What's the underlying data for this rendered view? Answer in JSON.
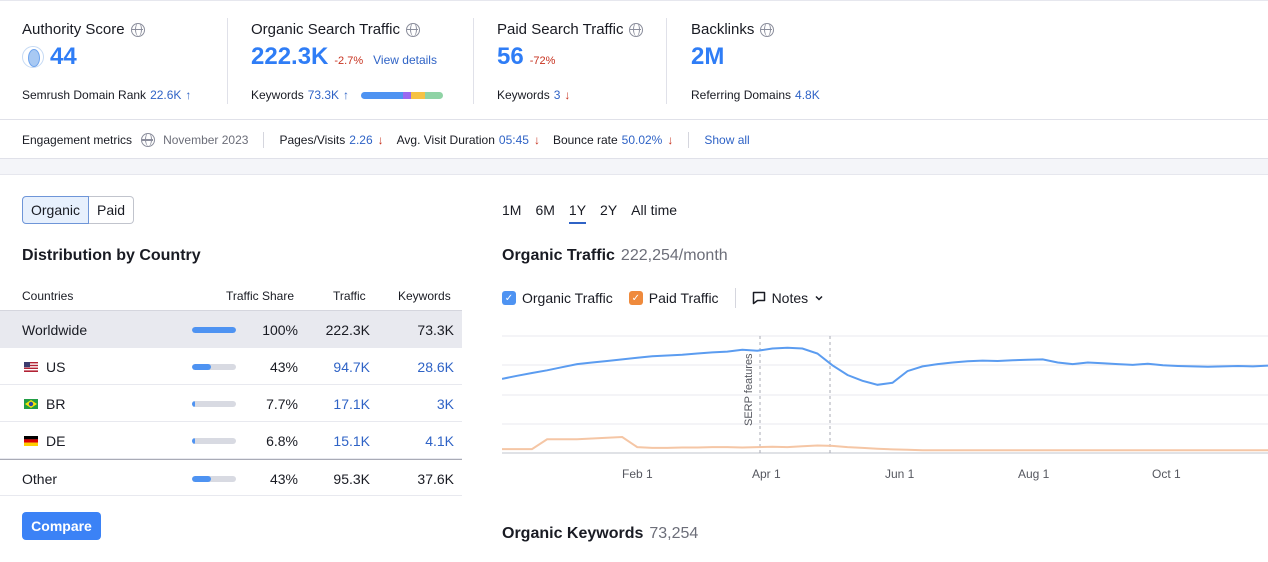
{
  "metrics": {
    "authority": {
      "title": "Authority Score",
      "value": "44",
      "sub_label": "Semrush Domain Rank",
      "sub_value": "22.6K"
    },
    "organic": {
      "title": "Organic Search Traffic",
      "value": "222.3K",
      "delta": "-2.7%",
      "link": "View details",
      "sub_label": "Keywords",
      "sub_value": "73.3K"
    },
    "paid": {
      "title": "Paid Search Traffic",
      "value": "56",
      "delta": "-72%",
      "sub_label": "Keywords",
      "sub_value": "3"
    },
    "backlinks": {
      "title": "Backlinks",
      "value": "2M",
      "sub_label": "Referring Domains",
      "sub_value": "4.8K"
    }
  },
  "keyword_bar_colors": [
    "#4e93f2",
    "#4e93f2",
    "#4e93f2",
    "#9a68f0",
    "#f6c244",
    "#8fd3a5"
  ],
  "engagement": {
    "label": "Engagement metrics",
    "date": "November 2023",
    "pages_label": "Pages/Visits",
    "pages_value": "2.26",
    "duration_label": "Avg. Visit Duration",
    "duration_value": "05:45",
    "bounce_label": "Bounce rate",
    "bounce_value": "50.02%",
    "show_all": "Show all"
  },
  "toggle": {
    "organic": "Organic",
    "paid": "Paid"
  },
  "distribution": {
    "title": "Distribution by Country",
    "headers": {
      "countries": "Countries",
      "share": "Traffic Share",
      "traffic": "Traffic",
      "keywords": "Keywords"
    },
    "rows": [
      {
        "country": "Worldwide",
        "share": "100%",
        "share_value": 1.0,
        "traffic": "222.3K",
        "keywords": "73.3K"
      },
      {
        "country": "US",
        "share": "43%",
        "share_value": 0.43,
        "traffic": "94.7K",
        "keywords": "28.6K"
      },
      {
        "country": "BR",
        "share": "7.7%",
        "share_value": 0.077,
        "traffic": "17.1K",
        "keywords": "3K"
      },
      {
        "country": "DE",
        "share": "6.8%",
        "share_value": 0.068,
        "traffic": "15.1K",
        "keywords": "4.1K"
      },
      {
        "country": "Other",
        "share": "43%",
        "share_value": 0.43,
        "traffic": "95.3K",
        "keywords": "37.6K"
      }
    ],
    "compare": "Compare"
  },
  "periods": [
    "1M",
    "6M",
    "1Y",
    "2Y",
    "All time"
  ],
  "selected_period": "1Y",
  "organic_traffic": {
    "title": "Organic Traffic",
    "value": "222,254/month"
  },
  "legend": {
    "organic": "Organic Traffic",
    "paid": "Paid Traffic",
    "notes": "Notes"
  },
  "chart_data": {
    "type": "line",
    "x_tick_labels": [
      "Feb 1",
      "Apr 1",
      "Jun 1",
      "Aug 1",
      "Oct 1"
    ],
    "annotations": [
      "SERP features"
    ],
    "series": [
      {
        "name": "Organic Traffic",
        "color": "#5b9cf0",
        "values": [
          190,
          198,
          205,
          212,
          220,
          228,
          232,
          236,
          240,
          244,
          248,
          250,
          252,
          255,
          258,
          260,
          265,
          262,
          268,
          270,
          268,
          255,
          225,
          200,
          185,
          175,
          180,
          210,
          222,
          228,
          232,
          235,
          237,
          236,
          238,
          239,
          240,
          232,
          228,
          232,
          230,
          228,
          226,
          229,
          225,
          223,
          222,
          221,
          222,
          223,
          222,
          224
        ]
      },
      {
        "name": "Paid Traffic",
        "color": "#f5c6a5",
        "values": [
          5,
          5,
          5,
          30,
          30,
          30,
          32,
          34,
          36,
          10,
          8,
          8,
          9,
          9,
          10,
          10,
          9,
          10,
          11,
          10,
          12,
          14,
          13,
          10,
          8,
          6,
          4,
          3,
          2,
          2,
          2,
          2,
          2,
          2,
          2,
          2,
          2,
          2,
          2,
          2,
          2,
          2,
          2,
          2,
          2,
          2,
          2,
          2,
          2,
          2,
          2,
          2
        ]
      }
    ]
  },
  "organic_keywords": {
    "title": "Organic Keywords",
    "value": "73,254"
  }
}
